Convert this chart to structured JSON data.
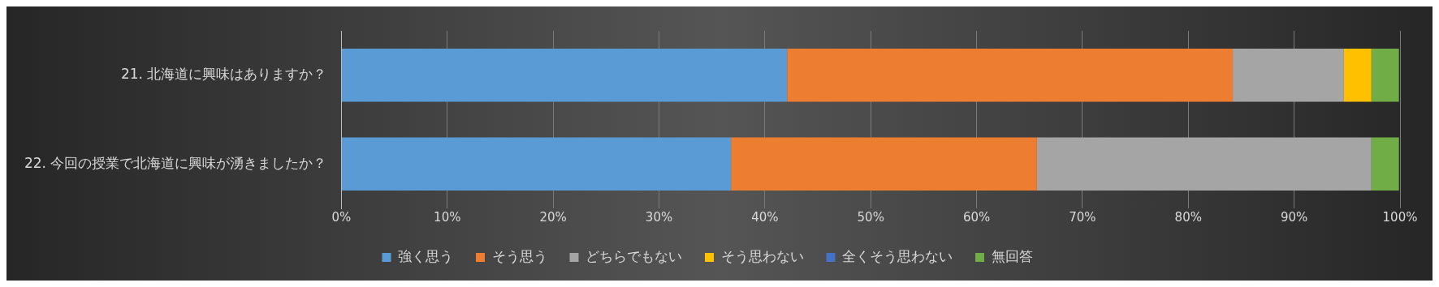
{
  "chart_data": {
    "type": "bar",
    "orientation": "horizontal",
    "stacked": true,
    "categories": [
      "21. 北海道に興味はありますか？",
      "22. 今回の授業で北海道に興味が湧きましたか？"
    ],
    "series": [
      {
        "name": "強く思う",
        "color": "#5b9bd5",
        "values": [
          42.1,
          36.8
        ]
      },
      {
        "name": "そう思う",
        "color": "#ed7d31",
        "values": [
          42.1,
          28.9
        ]
      },
      {
        "name": "どちらでもない",
        "color": "#a5a5a5",
        "values": [
          10.5,
          31.6
        ]
      },
      {
        "name": "そう思わない",
        "color": "#ffc000",
        "values": [
          2.6,
          0
        ]
      },
      {
        "name": "全くそう思わない",
        "color": "#4472c4",
        "values": [
          0,
          0
        ]
      },
      {
        "name": "無回答",
        "color": "#70ad47",
        "values": [
          2.6,
          2.6
        ]
      }
    ],
    "xlim": [
      0,
      100
    ],
    "xticks": [
      {
        "value": 0,
        "label": "0%"
      },
      {
        "value": 10,
        "label": "10%"
      },
      {
        "value": 20,
        "label": "20%"
      },
      {
        "value": 30,
        "label": "30%"
      },
      {
        "value": 40,
        "label": "40%"
      },
      {
        "value": 50,
        "label": "50%"
      },
      {
        "value": 60,
        "label": "60%"
      },
      {
        "value": 70,
        "label": "70%"
      },
      {
        "value": 80,
        "label": "80%"
      },
      {
        "value": 90,
        "label": "90%"
      },
      {
        "value": 100,
        "label": "100%"
      }
    ],
    "grid": "x",
    "legend": "bottom"
  }
}
